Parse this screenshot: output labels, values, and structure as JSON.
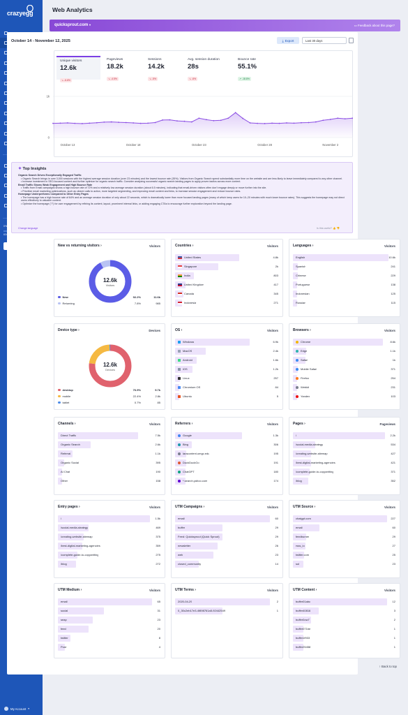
{
  "sidebar": {
    "logo": "crazyegg",
    "items": [
      {
        "label": "Home",
        "icon": "home-icon"
      },
      {
        "label": "Web Analytics",
        "icon": "chart-icon",
        "active": true
      },
      {
        "label": "Live Activity",
        "icon": "activity-icon"
      },
      {
        "label": "Goals",
        "icon": "target-icon"
      },
      {
        "label": "Snapshots",
        "icon": "camera-icon"
      },
      {
        "label": "Recordings",
        "icon": "video-icon"
      },
      {
        "label": "Errors",
        "icon": "warning-icon"
      },
      {
        "label": "Traffic",
        "icon": "traffic-icon"
      },
      {
        "label": "Funnels",
        "icon": "funnel-icon"
      },
      {
        "label": "A/B Testing",
        "icon": "ab-icon"
      },
      {
        "label": "Surveys",
        "icon": "survey-icon"
      },
      {
        "label": "CTAs",
        "icon": "cta-icon"
      }
    ],
    "bottom_items": [
      {
        "label": "Help",
        "icon": "help-icon"
      },
      {
        "label": "Options",
        "icon": "gear-icon"
      },
      {
        "label": "Comments",
        "icon": "comment-icon"
      },
      {
        "label": "What's new",
        "icon": "megaphone-icon"
      },
      {
        "label": "Install Crazy Egg",
        "icon": "code-icon"
      }
    ],
    "pageviews_label": "0% pageviews used",
    "pageviews_count": "634 / 1,000,000",
    "upgrade": "Upgrade Now",
    "account": "My Account"
  },
  "header": {
    "title": "Web Analytics",
    "site": "quicksprout.com",
    "feedback": "Feedback about this page?"
  },
  "toolbar": {
    "date_range": "October 14 - November 12, 2025",
    "export": "Export",
    "range": "Last 30 days"
  },
  "kpis": [
    {
      "label": "Unique visitors",
      "value": "12.6k",
      "change": "-6.6%",
      "dir": "down"
    },
    {
      "label": "Pageviews",
      "value": "18.2k",
      "change": "-4.5%",
      "dir": "down"
    },
    {
      "label": "Sessions",
      "value": "14.2k",
      "change": "-5%",
      "dir": "down"
    },
    {
      "label": "Avg. session duration",
      "value": "28s",
      "change": "-6%",
      "dir": "down"
    },
    {
      "label": "Bounce rate",
      "value": "55.1%",
      "change": "-18.8%",
      "dir": "up"
    }
  ],
  "chart_data": {
    "type": "area",
    "x_ticks": [
      "October 13",
      "October 18",
      "October 23",
      "October 28",
      "November 2",
      "November 7"
    ],
    "y_ticks": [
      "1k",
      "0"
    ],
    "ylim": [
      0,
      1000
    ],
    "series": [
      {
        "values": [
          345,
          350,
          355,
          345,
          340,
          350,
          360,
          375,
          380,
          370,
          365,
          355,
          345,
          350,
          365,
          425,
          430,
          405,
          395,
          380,
          470,
          435,
          410,
          420,
          470,
          605,
          465,
          355,
          345,
          340,
          350,
          345,
          355,
          350,
          360,
          365,
          380,
          420,
          440,
          470,
          455,
          470,
          535,
          520,
          490,
          470,
          455,
          500
        ]
      }
    ]
  },
  "insights": {
    "title": "Top Insights",
    "sections": [
      {
        "heading": "Organic Search Drives Exceptionally Engaged Traffic",
        "bullets": [
          "Organic Search brings in over 3,000 sessions with the highest average session duration (over 23 minutes) and the lowest bounce rate (35%). Visitors from Organic Search spend substantially more time on the website and are less likely to leave immediately compared to any other channel.",
          "Increase investment in SEO-focused content and further optimize for organic search traffic. Consider analyzing successful organic search landing pages to apply proven tactics across more content."
        ]
      },
      {
        "heading": "Email Traffic Shows Weak Engagement and High Bounce Rate",
        "bullets": [
          "Traffic from Email campaigns shows a high bounce rate of 72% and a relatively low average session duration (about 6.5 minutes), indicating that email-driven visitors often don't engage deeply or move further into the site.",
          "Prioritize email marketing optimizations, such as clearer calls to action, more targeted segmenting, and improving email content and links, to increase session engagement and reduce bounce rates."
        ]
      },
      {
        "heading": "Homepage Underperforms Compared to Other Entry Pages",
        "bullets": [
          "The homepage has a high bounce rate of 64% and an average session duration of only about 22 seconds, which is dramatically lower than more focused landing pages (many of which keep users for 10–20 minutes with much lower bounce rates). This suggests the homepage may not direct users effectively to valuable content.",
          "Optimize the homepage (\"/\") for user engagement by refining its content, layout, prominent internal links, or adding engaging CTAs to encourage further exploration beyond the landing page."
        ]
      }
    ],
    "link": "Change language",
    "helpful": "Is this useful?"
  },
  "new_returning": {
    "title": "New vs returning visitors",
    "col": "Visitors",
    "total": "12.6k",
    "total_label": "Visitors",
    "rows": [
      {
        "label": "New",
        "pct": "92.2%",
        "value": "11.6k",
        "color": "#5b5ce6",
        "frac": 0.922
      },
      {
        "label": "Returning",
        "pct": "7.8%",
        "value": "985",
        "color": "#b9c3f3",
        "frac": 0.078
      }
    ]
  },
  "device_type": {
    "title": "Device type",
    "col": "Devices",
    "total": "12.6k",
    "total_label": "Devices",
    "rows": [
      {
        "label": "desktop",
        "pct": "76.9%",
        "value": "9.7k",
        "color": "#e0626d",
        "frac": 0.769
      },
      {
        "label": "mobile",
        "pct": "22.4%",
        "value": "2.8k",
        "color": "#f5b942",
        "frac": 0.224
      },
      {
        "label": "tablet",
        "pct": "0.7%",
        "value": "85",
        "color": "#4d8be8",
        "frac": 0.007
      }
    ]
  },
  "tables": [
    {
      "key": "countries",
      "title": "Countries",
      "col": "Visitors",
      "icon": "flag",
      "rows": [
        {
          "label": "United States",
          "value": "4.8k",
          "frac": 0.62
        },
        {
          "label": "Singapore",
          "value": "2k",
          "frac": 0.42
        },
        {
          "label": "India",
          "value": "803",
          "frac": 0.18
        },
        {
          "label": "United Kingdom",
          "value": "417",
          "frac": 0.1
        },
        {
          "label": "Canada",
          "value": "345",
          "frac": 0.08
        },
        {
          "label": "Indonesia",
          "value": "271",
          "frac": 0.07
        }
      ]
    },
    {
      "key": "languages",
      "title": "Languages",
      "col": "Visitors",
      "icon": "none",
      "rows": [
        {
          "label": "English",
          "value": "10.6k",
          "frac": 0.93
        },
        {
          "label": "Spanish",
          "value": "241",
          "frac": 0.05
        },
        {
          "label": "Chinese",
          "value": "229",
          "frac": 0.05
        },
        {
          "label": "Portuguese",
          "value": "138",
          "frac": 0.03
        },
        {
          "label": "Indonesian",
          "value": "125",
          "frac": 0.03
        },
        {
          "label": "Russian",
          "value": "115",
          "frac": 0.03
        }
      ]
    },
    {
      "key": "os",
      "title": "OS",
      "col": "Visitors",
      "icon": "os",
      "rows": [
        {
          "label": "Windows",
          "value": "6.9k",
          "frac": 0.72
        },
        {
          "label": "MacOS",
          "value": "2.4k",
          "frac": 0.3
        },
        {
          "label": "Android",
          "value": "1.6k",
          "frac": 0.21
        },
        {
          "label": "iOS",
          "value": "1.2k",
          "frac": 0.17
        },
        {
          "label": "Linux",
          "value": "257",
          "frac": 0.05
        },
        {
          "label": "Chromium OS",
          "value": "84",
          "frac": 0.02
        },
        {
          "label": "Ubuntu",
          "value": "5",
          "frac": 0.01
        }
      ]
    },
    {
      "key": "browsers",
      "title": "Browsers",
      "col": "Visitors",
      "icon": "browser",
      "rows": [
        {
          "label": "Chrome",
          "value": "8.6k",
          "frac": 0.88
        },
        {
          "label": "Edge",
          "value": "1.1k",
          "frac": 0.13
        },
        {
          "label": "Safari",
          "value": "1k",
          "frac": 0.12
        },
        {
          "label": "Mobile Safari",
          "value": "371",
          "frac": 0.05
        },
        {
          "label": "Firefox",
          "value": "254",
          "frac": 0.04
        },
        {
          "label": "Webkit",
          "value": "231",
          "frac": 0.04
        },
        {
          "label": "Yandex",
          "value": "103",
          "frac": 0.02
        }
      ]
    },
    {
      "key": "channels",
      "title": "Channels",
      "col": "Visitors",
      "icon": "none",
      "rows": [
        {
          "label": "Direct Traffic",
          "value": "7.5k",
          "frac": 0.78
        },
        {
          "label": "Organic Search",
          "value": "2.6k",
          "frac": 0.32
        },
        {
          "label": "Referral",
          "value": "1.1k",
          "frac": 0.14
        },
        {
          "label": "Organic Social",
          "value": "395",
          "frac": 0.06
        },
        {
          "label": "AI Chat",
          "value": "190",
          "frac": 0.03
        },
        {
          "label": "Other",
          "value": "158",
          "frac": 0.03
        }
      ]
    },
    {
      "key": "referrers",
      "title": "Referrers",
      "col": "Visitors",
      "icon": "ref",
      "rows": [
        {
          "label": "Google",
          "value": "1.3k",
          "frac": 0.65
        },
        {
          "label": "Bing",
          "value": "306",
          "frac": 0.16
        },
        {
          "label": "laracontent.umgc.edu",
          "value": "195",
          "frac": 0.11
        },
        {
          "label": "DuckDuckGo",
          "value": "191",
          "frac": 0.11
        },
        {
          "label": "ChatGPT",
          "value": "180",
          "frac": 0.1
        },
        {
          "label": "*.search.yahoo.com",
          "value": "174",
          "frac": 0.1
        }
      ]
    },
    {
      "key": "pages",
      "title": "Pages",
      "col": "Pageviews",
      "icon": "none",
      "rows": [
        {
          "label": "/",
          "value": "2.2k",
          "frac": 0.9
        },
        {
          "label": "/social-media-strategy",
          "value": "534",
          "frac": 0.22
        },
        {
          "label": "/creating-website-sitemap",
          "value": "427",
          "frac": 0.18
        },
        {
          "label": "/best-digital-marketing-agencies",
          "value": "421",
          "frac": 0.18
        },
        {
          "label": "/complete-guide-to-copywriting",
          "value": "371",
          "frac": 0.16
        },
        {
          "label": "/blog",
          "value": "352",
          "frac": 0.15
        }
      ]
    },
    {
      "key": "entry_pages",
      "title": "Entry pages",
      "col": "Visitors",
      "icon": "none",
      "rows": [
        {
          "label": "/",
          "value": "1.5k",
          "frac": 0.9
        },
        {
          "label": "/social-media-strategy",
          "value": "469",
          "frac": 0.3
        },
        {
          "label": "/creating-website-sitemap",
          "value": "375",
          "frac": 0.25
        },
        {
          "label": "/best-digital-marketing-agencies",
          "value": "359",
          "frac": 0.24
        },
        {
          "label": "/complete-guide-to-copywriting",
          "value": "275",
          "frac": 0.19
        },
        {
          "label": "/blog",
          "value": "272",
          "frac": 0.18
        }
      ]
    },
    {
      "key": "utm_campaigns",
      "title": "UTM Campaigns",
      "col": "Visitors",
      "icon": "none",
      "rows": [
        {
          "label": "email",
          "value": "60",
          "frac": 0.92
        },
        {
          "label": "buffer",
          "value": "29",
          "frac": 0.46
        },
        {
          "label": "Feed: Quicksprout (Quick Sprout)",
          "value": "29",
          "frac": 0.46
        },
        {
          "label": "newsletter",
          "value": "26",
          "frac": 0.41
        },
        {
          "label": "web",
          "value": "23",
          "frac": 0.37
        },
        {
          "label": "closed_community",
          "value": "14",
          "frac": 0.23
        }
      ]
    },
    {
      "key": "utm_source",
      "title": "UTM Source",
      "col": "Visitors",
      "icon": "none",
      "rows": [
        {
          "label": "chatgpt.com",
          "value": "227",
          "frac": 0.92
        },
        {
          "label": "email",
          "value": "60",
          "frac": 0.26
        },
        {
          "label": "feedburner",
          "value": "29",
          "frac": 0.13
        },
        {
          "label": "rsss_io",
          "value": "27",
          "frac": 0.12
        },
        {
          "label": "twitter.com",
          "value": "25",
          "frac": 0.11
        },
        {
          "label": "sol",
          "value": "23",
          "frac": 0.1
        }
      ]
    },
    {
      "key": "utm_medium",
      "title": "UTM Medium",
      "col": "Visitors",
      "icon": "none",
      "rows": [
        {
          "label": "email",
          "value": "65",
          "frac": 0.92
        },
        {
          "label": "social",
          "value": "31",
          "frac": 0.45
        },
        {
          "label": "seap",
          "value": "23",
          "frac": 0.34
        },
        {
          "label": "feed",
          "value": "20",
          "frac": 0.3
        },
        {
          "label": "twitter",
          "value": "8",
          "frac": 0.12
        },
        {
          "label": "Post",
          "value": "4",
          "frac": 0.07
        }
      ]
    },
    {
      "key": "utm_terms",
      "title": "UTM Terms",
      "col": "Visitors",
      "icon": "none",
      "rows": [
        {
          "label": "2020-04-29",
          "value": "2",
          "frac": 0.92
        },
        {
          "label": "0_30c2eb17e3-4f898761a5-92442549",
          "value": "1",
          "frac": 0.46
        }
      ]
    },
    {
      "key": "utm_content",
      "title": "UTM Content",
      "col": "Visitors",
      "icon": "none",
      "rows": [
        {
          "label": "buffer01abc",
          "value": "12",
          "frac": 0.92
        },
        {
          "label": "buffer40816",
          "value": "3",
          "frac": 0.25
        },
        {
          "label": "buffer0ow7",
          "value": "2",
          "frac": 0.18
        },
        {
          "label": "buffer071be",
          "value": "1",
          "frac": 0.1
        },
        {
          "label": "buffer1f933",
          "value": "1",
          "frac": 0.1
        },
        {
          "label": "buffer25458",
          "value": "1",
          "frac": 0.1
        }
      ]
    }
  ],
  "footer": {
    "back_to_top": "↑ Back to top"
  },
  "colors": {
    "sidebar": "#1e56b8",
    "accent": "#7b3fe4",
    "bar": "#ede3fb"
  }
}
